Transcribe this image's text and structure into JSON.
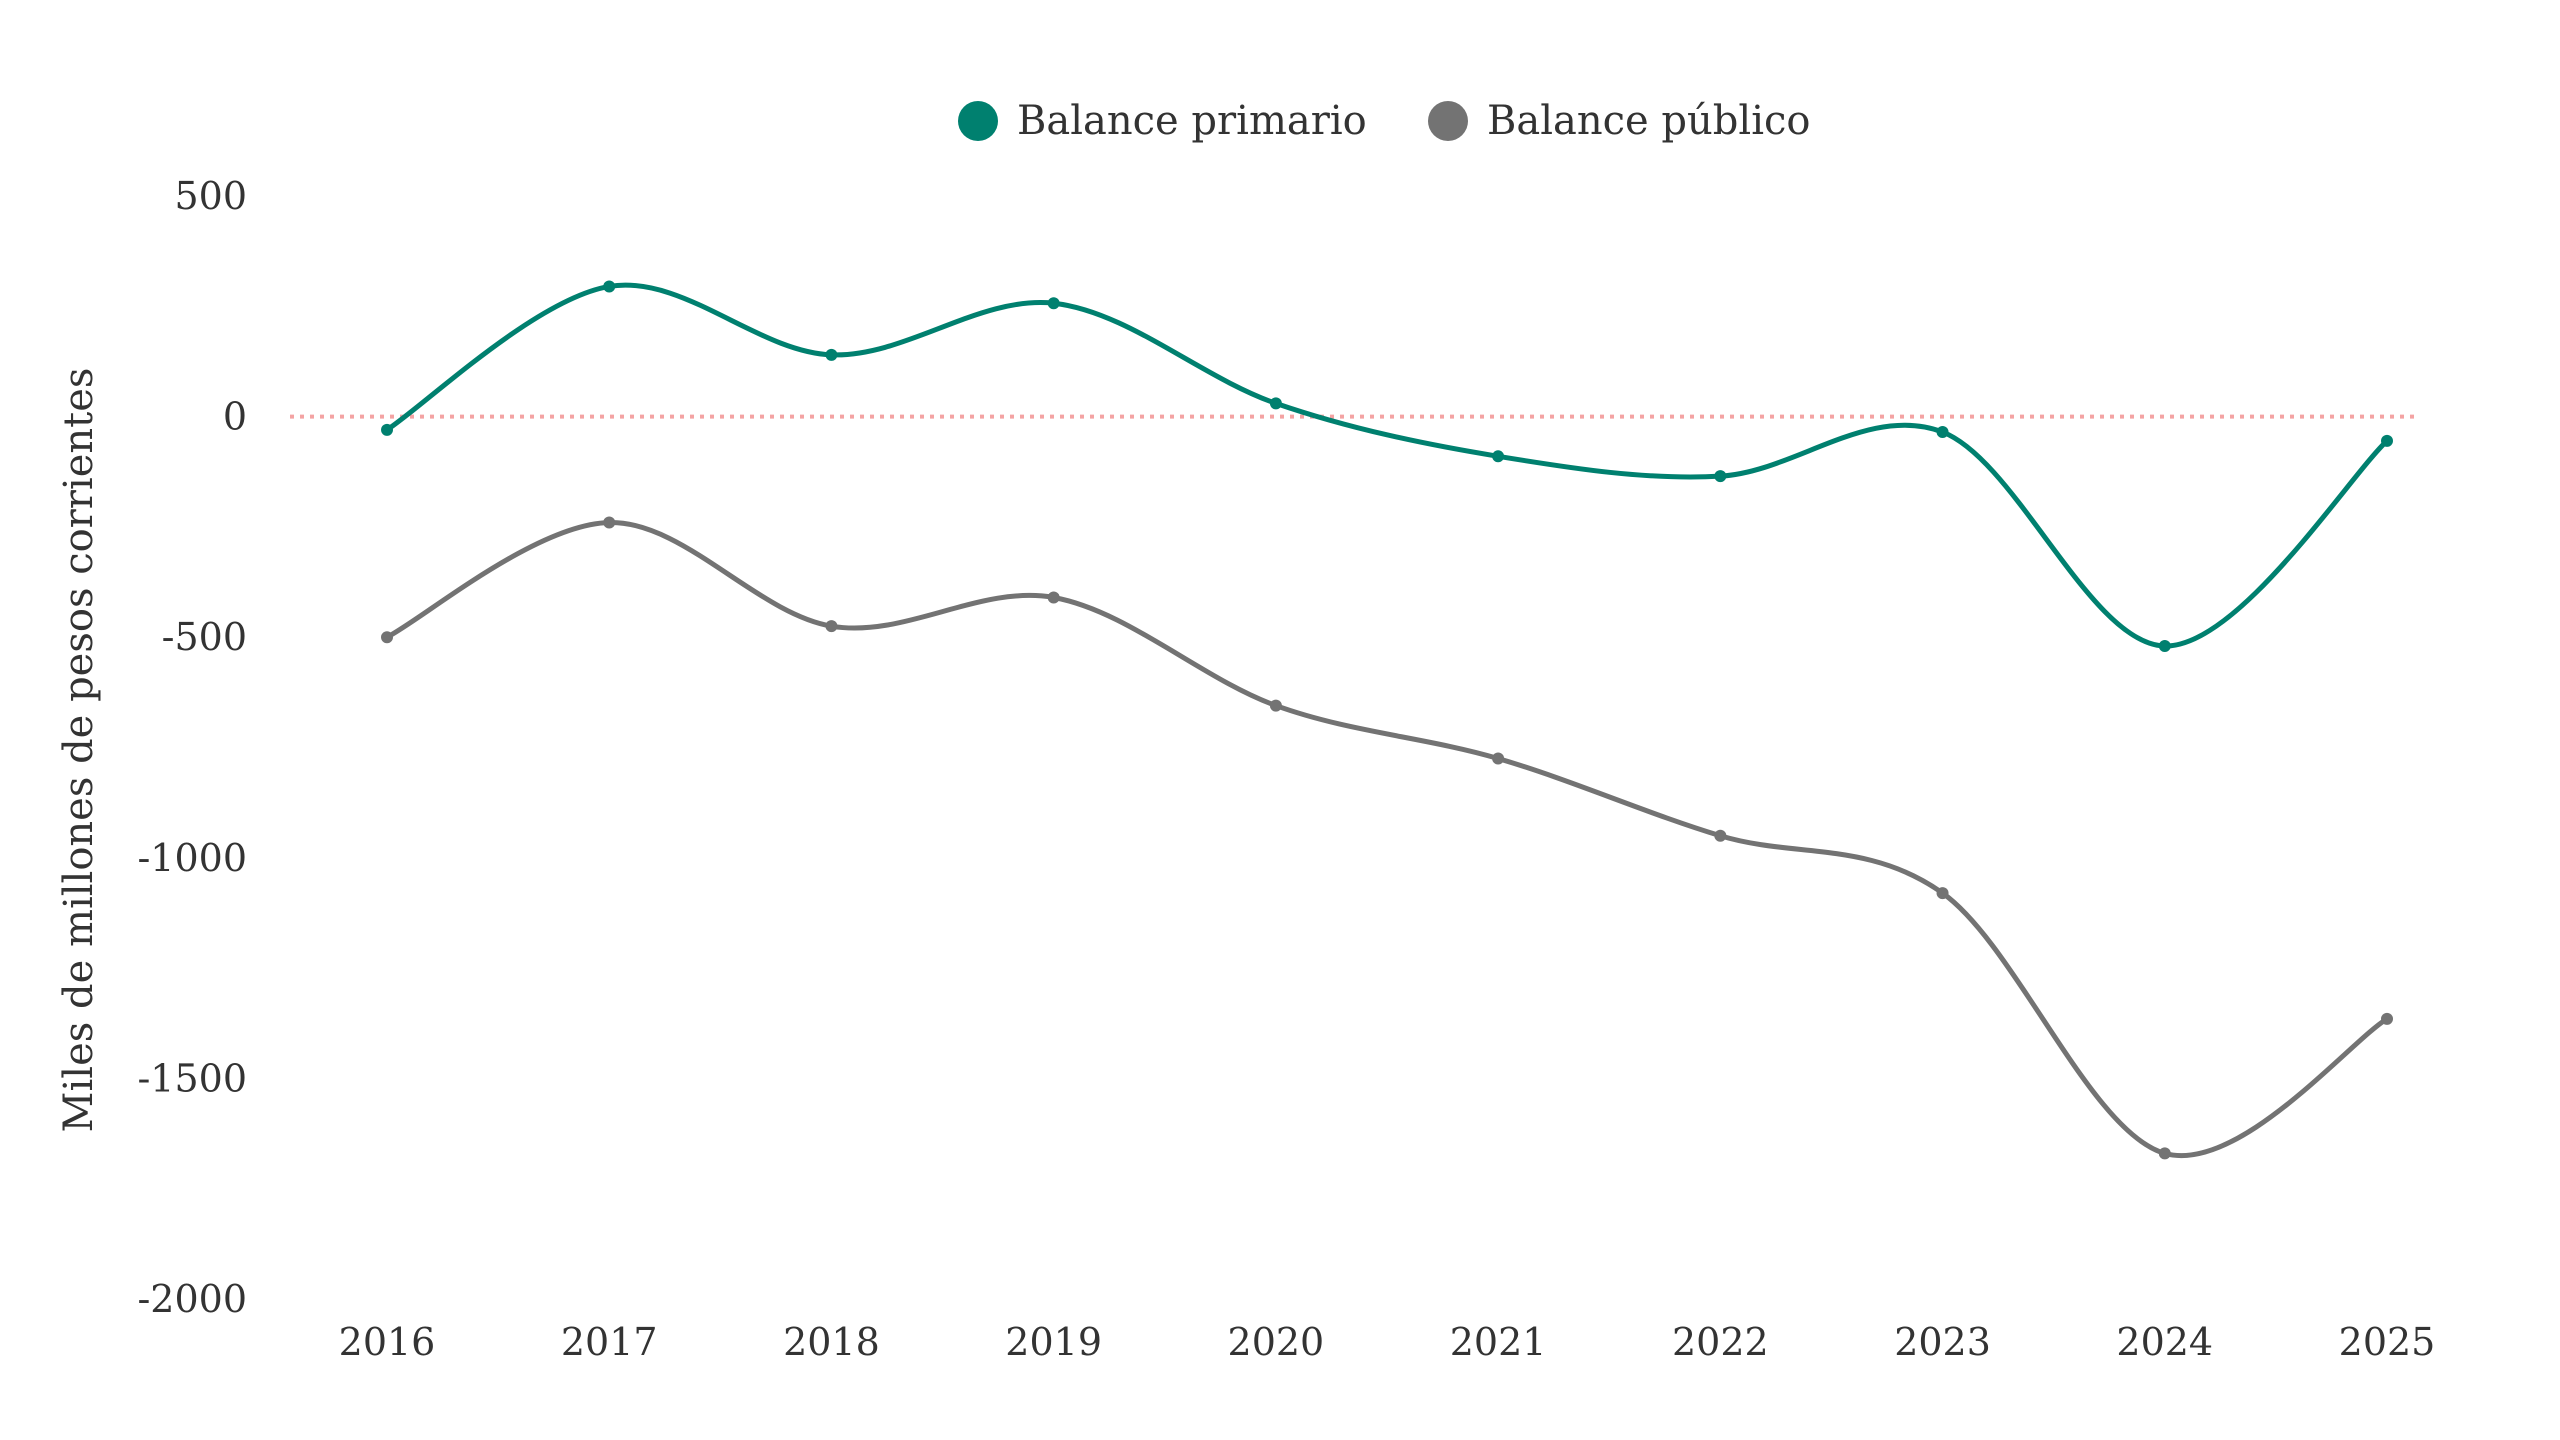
{
  "chart_data": {
    "type": "line",
    "title": "",
    "xlabel": "",
    "ylabel": "Miles de millones de pesos corrientes",
    "categories": [
      "2016",
      "2017",
      "2018",
      "2019",
      "2020",
      "2021",
      "2022",
      "2023",
      "2024",
      "2025"
    ],
    "ylim": [
      -2000,
      500
    ],
    "yticks": [
      500,
      0,
      -500,
      -1000,
      -1500,
      -2000
    ],
    "ytick_labels": [
      "500",
      "0",
      "-500",
      "-1000",
      "-1500",
      "-2000"
    ],
    "grid": false,
    "legend_position": "top-center",
    "reference_line": {
      "value": 0,
      "style": "dotted",
      "color": "#f4a3a3"
    },
    "series": [
      {
        "name": "Balance primario",
        "color": "#00806f",
        "values": [
          -30,
          295,
          140,
          257,
          30,
          -90,
          -135,
          -35,
          -520,
          -55
        ]
      },
      {
        "name": "Balance público",
        "color": "#737373",
        "values": [
          -500,
          -240,
          -475,
          -410,
          -655,
          -775,
          -950,
          -1080,
          -1670,
          -1365
        ]
      }
    ]
  }
}
